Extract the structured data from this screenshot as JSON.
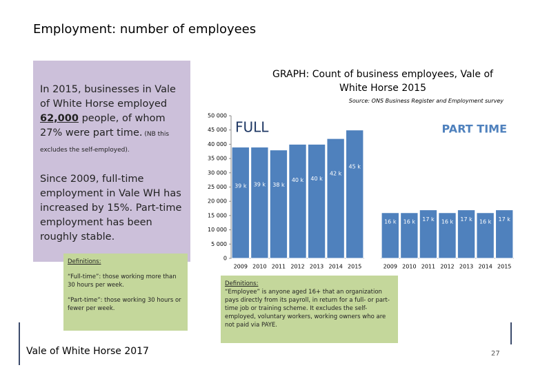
{
  "slide": {
    "heading": "Employment: number of employees",
    "intro": [
      "In 2015, businesses in Vale of White Horse employed ",
      "62,000",
      " people, of whom 27% were part time.",
      " (NB this excludes the self-employed)."
    ],
    "growth": "Since 2009, full-time employment in Vale WH has increased by 15%. Part-time employment has been roughly stable.",
    "definitions_left": {
      "title": "Definitions:",
      "items": [
        "“Full-time”: those working more than 30 hours per week.",
        "“Part-time”: those working 30 hours or fewer per week."
      ]
    },
    "definitions_right": {
      "title": "Definitions:",
      "text": "“Employee” is anyone aged 16+ that an organization pays directly from its payroll, in return for a full- or part-time job or training scheme. It excludes the self-employed, voluntary workers, working owners who are not paid via PAYE."
    },
    "footer": "Vale of White Horse 2017",
    "page_number": "27"
  },
  "chart_data": {
    "type": "bar",
    "title": "GRAPH: Count of business employees, Vale of White Horse 2015",
    "subtitle": "Source: ONS Business Register and Employment survey",
    "categories": [
      "2009",
      "2010",
      "2011",
      "2012",
      "2013",
      "2014",
      "2015"
    ],
    "series": [
      {
        "name": "FULL",
        "color": "#4f81bd",
        "values": [
          39000,
          39000,
          38000,
          40000,
          40000,
          42000,
          45000
        ],
        "value_labels": [
          "39 k",
          "39 k",
          "38 k",
          "40 k",
          "40 k",
          "42 k",
          "45 k"
        ]
      },
      {
        "name": "PART TIME",
        "color": "#4f81bd",
        "values": [
          16000,
          16000,
          17000,
          16000,
          17000,
          16000,
          17000
        ],
        "value_labels": [
          "16 k",
          "16 k",
          "17 k",
          "16 k",
          "17 k",
          "16 k",
          "17 k"
        ]
      }
    ],
    "ylim": [
      0,
      50000
    ],
    "yticks": [
      0,
      {
        "value": 5000,
        "label": "5 000"
      },
      {
        "value": 10000,
        "label": "10 000"
      },
      {
        "value": 15000,
        "label": "15 000"
      },
      {
        "value": 20000,
        "label": "20 000"
      },
      {
        "value": 25000,
        "label": "25 000"
      },
      {
        "value": 30000,
        "label": "30 000"
      },
      {
        "value": 35000,
        "label": "35 000"
      },
      {
        "value": 40000,
        "label": "40 000"
      },
      {
        "value": 45000,
        "label": "45 000"
      },
      {
        "value": 50000,
        "label": "50 000"
      }
    ],
    "grid": false,
    "series_label_color": [
      "#1f3864",
      "#4f81bd"
    ]
  }
}
